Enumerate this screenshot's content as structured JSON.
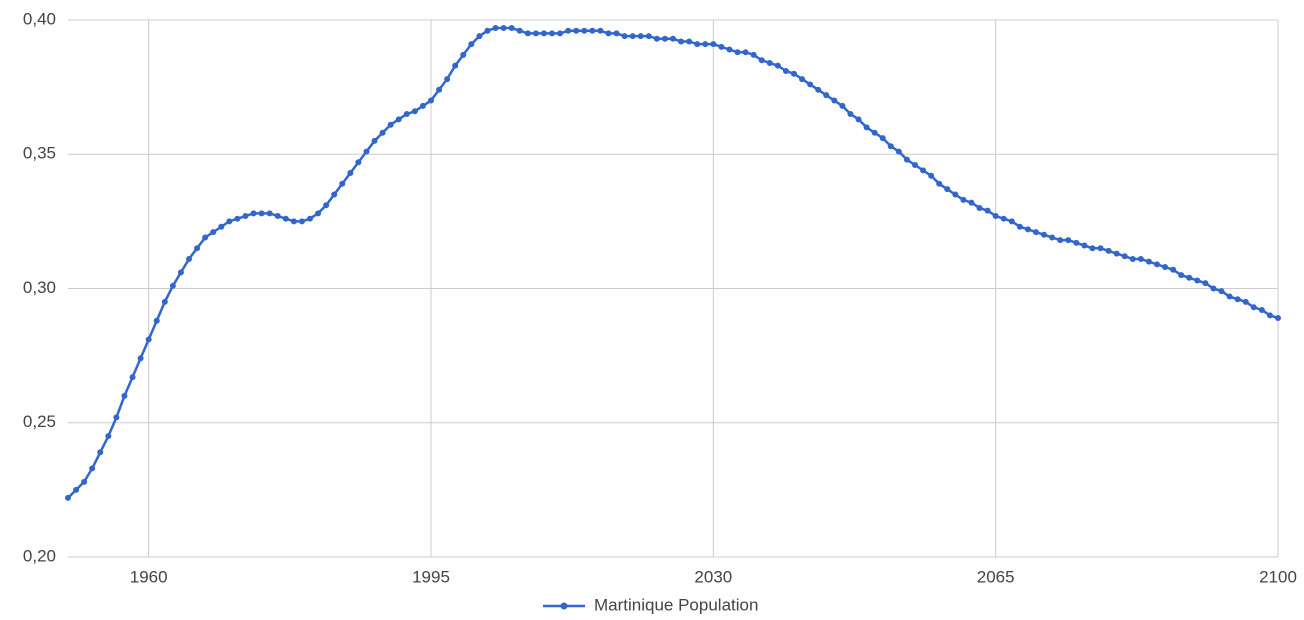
{
  "chart_data": {
    "type": "line",
    "x": [
      1950,
      1951,
      1952,
      1953,
      1954,
      1955,
      1956,
      1957,
      1958,
      1959,
      1960,
      1961,
      1962,
      1963,
      1964,
      1965,
      1966,
      1967,
      1968,
      1969,
      1970,
      1971,
      1972,
      1973,
      1974,
      1975,
      1976,
      1977,
      1978,
      1979,
      1980,
      1981,
      1982,
      1983,
      1984,
      1985,
      1986,
      1987,
      1988,
      1989,
      1990,
      1991,
      1992,
      1993,
      1994,
      1995,
      1996,
      1997,
      1998,
      1999,
      2000,
      2001,
      2002,
      2003,
      2004,
      2005,
      2006,
      2007,
      2008,
      2009,
      2010,
      2011,
      2012,
      2013,
      2014,
      2015,
      2016,
      2017,
      2018,
      2019,
      2020,
      2021,
      2022,
      2023,
      2024,
      2025,
      2026,
      2027,
      2028,
      2029,
      2030,
      2031,
      2032,
      2033,
      2034,
      2035,
      2036,
      2037,
      2038,
      2039,
      2040,
      2041,
      2042,
      2043,
      2044,
      2045,
      2046,
      2047,
      2048,
      2049,
      2050,
      2051,
      2052,
      2053,
      2054,
      2055,
      2056,
      2057,
      2058,
      2059,
      2060,
      2061,
      2062,
      2063,
      2064,
      2065,
      2066,
      2067,
      2068,
      2069,
      2070,
      2071,
      2072,
      2073,
      2074,
      2075,
      2076,
      2077,
      2078,
      2079,
      2080,
      2081,
      2082,
      2083,
      2084,
      2085,
      2086,
      2087,
      2088,
      2089,
      2090,
      2091,
      2092,
      2093,
      2094,
      2095,
      2096,
      2097,
      2098,
      2099,
      2100
    ],
    "series": [
      {
        "name": "Martinique Population",
        "color": "#3366cc",
        "values": [
          0.222,
          0.225,
          0.228,
          0.233,
          0.239,
          0.245,
          0.252,
          0.26,
          0.267,
          0.274,
          0.281,
          0.288,
          0.295,
          0.301,
          0.306,
          0.311,
          0.315,
          0.319,
          0.321,
          0.323,
          0.325,
          0.326,
          0.327,
          0.328,
          0.328,
          0.328,
          0.327,
          0.326,
          0.325,
          0.325,
          0.326,
          0.328,
          0.331,
          0.335,
          0.339,
          0.343,
          0.347,
          0.351,
          0.355,
          0.358,
          0.361,
          0.363,
          0.365,
          0.366,
          0.368,
          0.37,
          0.374,
          0.378,
          0.383,
          0.387,
          0.391,
          0.394,
          0.396,
          0.397,
          0.397,
          0.397,
          0.396,
          0.395,
          0.395,
          0.395,
          0.395,
          0.395,
          0.396,
          0.396,
          0.396,
          0.396,
          0.396,
          0.395,
          0.395,
          0.394,
          0.394,
          0.394,
          0.394,
          0.393,
          0.393,
          0.393,
          0.392,
          0.392,
          0.391,
          0.391,
          0.391,
          0.39,
          0.389,
          0.388,
          0.388,
          0.387,
          0.385,
          0.384,
          0.383,
          0.381,
          0.38,
          0.378,
          0.376,
          0.374,
          0.372,
          0.37,
          0.368,
          0.365,
          0.363,
          0.36,
          0.358,
          0.356,
          0.353,
          0.351,
          0.348,
          0.346,
          0.344,
          0.342,
          0.339,
          0.337,
          0.335,
          0.333,
          0.332,
          0.33,
          0.329,
          0.327,
          0.326,
          0.325,
          0.323,
          0.322,
          0.321,
          0.32,
          0.319,
          0.318,
          0.318,
          0.317,
          0.316,
          0.315,
          0.315,
          0.314,
          0.313,
          0.312,
          0.311,
          0.311,
          0.31,
          0.309,
          0.308,
          0.307,
          0.305,
          0.304,
          0.303,
          0.302,
          0.3,
          0.299,
          0.297,
          0.296,
          0.295,
          0.293,
          0.292,
          0.29,
          0.289
        ]
      }
    ],
    "xlim": [
      1950,
      2100
    ],
    "xticks": [
      1960,
      1995,
      2030,
      2065,
      2100
    ],
    "ylim": [
      0.2,
      0.4
    ],
    "yticks": [
      {
        "value": 0.2,
        "label": "0,20"
      },
      {
        "value": 0.25,
        "label": "0,25"
      },
      {
        "value": 0.3,
        "label": "0,30"
      },
      {
        "value": 0.35,
        "label": "0,35"
      },
      {
        "value": 0.4,
        "label": "0,40"
      }
    ],
    "grid": true,
    "legend": "bottom"
  }
}
